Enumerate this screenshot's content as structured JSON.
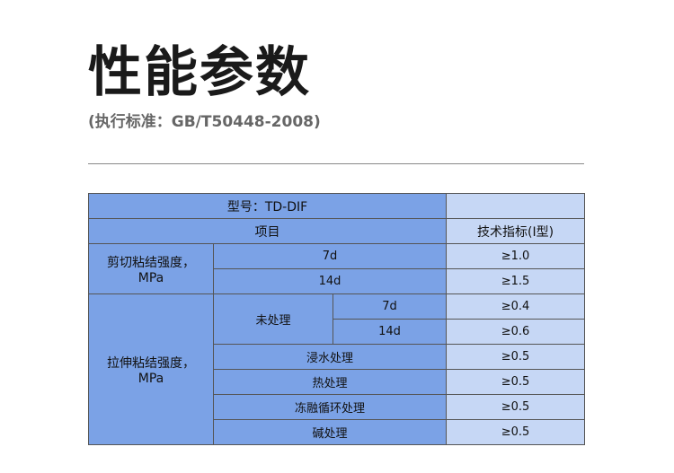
{
  "title": "性能参数",
  "subtitle": "(执行标准：GB/T50448-2008)",
  "table": {
    "model": "型号：TD-DIF",
    "header_item": "项目",
    "header_spec": "技术指标(I型)",
    "shear": {
      "label": "剪切粘结强度，",
      "unit": "MPa",
      "rows": [
        {
          "item": "7d",
          "value": "≥1.0"
        },
        {
          "item": "14d",
          "value": "≥1.5"
        }
      ]
    },
    "tensile": {
      "label": "拉伸粘结强度，",
      "unit": "MPa",
      "untreated": "未处理",
      "untreated_rows": [
        {
          "item": "7d",
          "value": "≥0.4"
        },
        {
          "item": "14d",
          "value": "≥0.6"
        }
      ],
      "rows": [
        {
          "item": "浸水处理",
          "value": "≥0.5"
        },
        {
          "item": "热处理",
          "value": "≥0.5"
        },
        {
          "item": "冻融循环处理",
          "value": "≥0.5"
        },
        {
          "item": "碱处理",
          "value": "≥0.5"
        }
      ]
    }
  },
  "colors": {
    "cell_dark": "#7ba2e6",
    "cell_light": "#c6d7f5"
  }
}
